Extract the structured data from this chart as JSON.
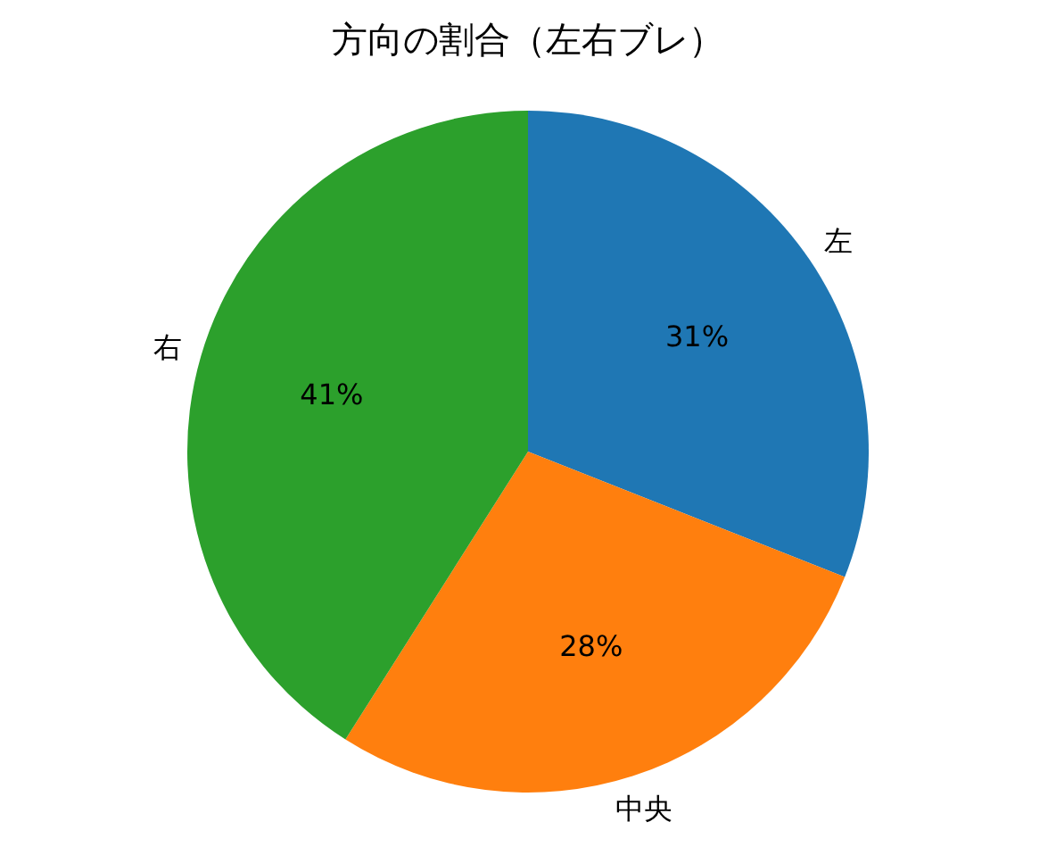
{
  "chart_data": {
    "type": "pie",
    "title": "方向の割合（左右ブレ）",
    "categories": [
      "左",
      "中央",
      "右"
    ],
    "values": [
      31,
      28,
      41
    ],
    "colors": [
      "#1f77b4",
      "#ff7f0e",
      "#2ca02c"
    ],
    "value_labels": [
      "31%",
      "28%",
      "41%"
    ]
  }
}
